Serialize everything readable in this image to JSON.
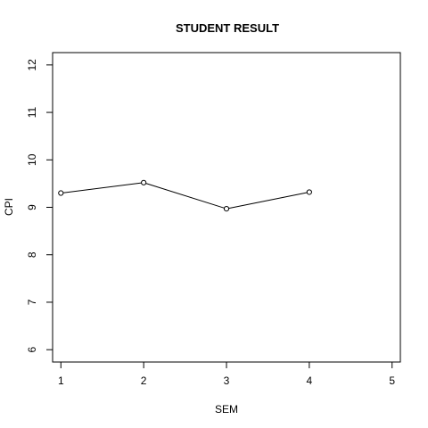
{
  "chart_data": {
    "type": "line",
    "title": "STUDENT RESULT",
    "xlabel": "SEM",
    "ylabel": "CPI",
    "x": [
      1,
      2,
      3,
      4
    ],
    "values": [
      9.3,
      9.52,
      8.97,
      9.32
    ],
    "xlim": [
      0.9,
      5.1
    ],
    "ylim": [
      5.74,
      12.26
    ],
    "x_ticks": [
      "1",
      "2",
      "3",
      "4",
      "5"
    ],
    "y_ticks": [
      "6",
      "7",
      "8",
      "9",
      "10",
      "11",
      "12"
    ],
    "grid": false,
    "markers": "open-circle",
    "line_color": "#000000"
  }
}
